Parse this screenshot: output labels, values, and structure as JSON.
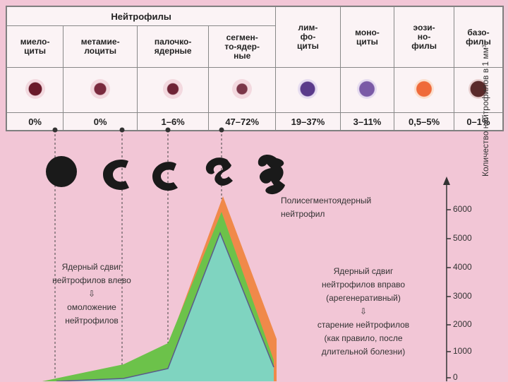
{
  "table": {
    "group_header": "Нейтрофилы",
    "columns": [
      {
        "name": "миело-\nциты",
        "value": "0%",
        "color": "#6a1a2a"
      },
      {
        "name": "метамие-\nлоциты",
        "value": "0%",
        "color": "#7a2a3e"
      },
      {
        "name": "палочко-\nядерные",
        "value": "1–6%",
        "color": "#6e2436"
      },
      {
        "name": "сегмен-\nто-ядер-\nные",
        "value": "47–72%",
        "color": "#7a3648"
      },
      {
        "name": "лим-\nфо-\nциты",
        "value": "19–37%",
        "color": "#5a3a8a"
      },
      {
        "name": "моно-\nциты",
        "value": "3–11%",
        "color": "#7a5aa6"
      },
      {
        "name": "эози-\nно-\nфилы",
        "value": "0,5–5%",
        "color": "#ef6a3a"
      },
      {
        "name": "базо-\nфилы",
        "value": "0–1%",
        "color": "#5a2a2a"
      }
    ]
  },
  "annotations": {
    "polysegment": "Полисегментоядерный\nнейтрофил",
    "left_shift": "Ядерный сдвиг\nнейтрофилов влево\n⇩\nомоложение\nнейтрофилов",
    "right_shift": "Ядерный сдвиг\nнейтрофилов вправо\n(арегенеративный)\n⇩\nстарение нейтрофилов\n(как правило, после\nдлительной болезни)"
  },
  "axis": {
    "label": "Количество нейтрофилов в 1 мм³",
    "ticks": [
      "6000",
      "5000",
      "4000",
      "3000",
      "2000",
      "1000",
      "0"
    ]
  },
  "colors": {
    "green": "#6cc24a",
    "orange": "#f0894a",
    "teal": "#7fd4c0",
    "nucleus": "#1a1a1a"
  }
}
